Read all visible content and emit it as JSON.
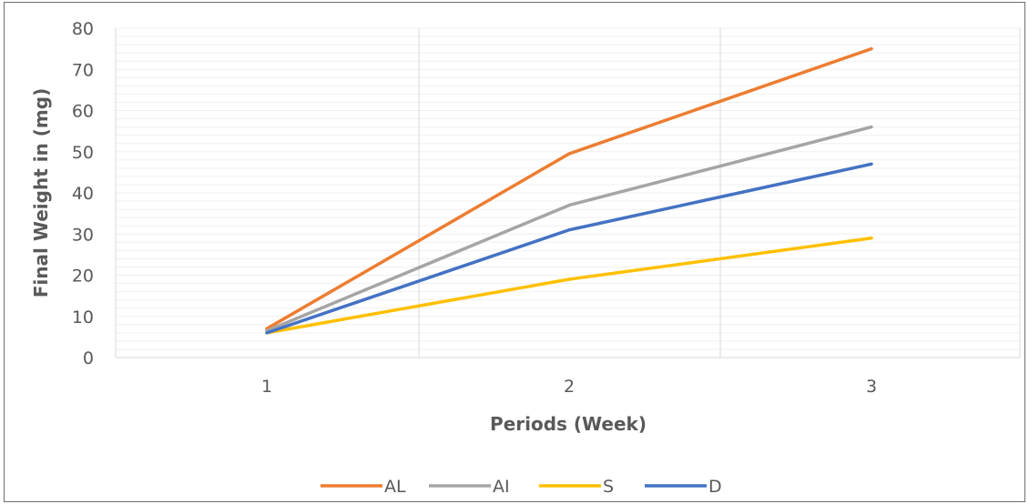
{
  "chart_data": {
    "type": "line",
    "xlabel": "Periods (Week)",
    "ylabel": "Final Weight in (mg)",
    "categories": [
      "1",
      "2",
      "3"
    ],
    "ylim": [
      0,
      80
    ],
    "yticks": [
      "0",
      "10",
      "20",
      "30",
      "40",
      "50",
      "60",
      "70",
      "80"
    ],
    "grid": true,
    "legend_position": "bottom",
    "series": [
      {
        "name": "AL",
        "color": "#ED7D31",
        "values": [
          7,
          49.5,
          75
        ]
      },
      {
        "name": "AI",
        "color": "#A5A5A5",
        "values": [
          6.5,
          37,
          56
        ]
      },
      {
        "name": "S",
        "color": "#FFC000",
        "values": [
          6,
          19,
          29
        ]
      },
      {
        "name": "D",
        "color": "#4472C4",
        "values": [
          6,
          31,
          47
        ]
      }
    ]
  }
}
